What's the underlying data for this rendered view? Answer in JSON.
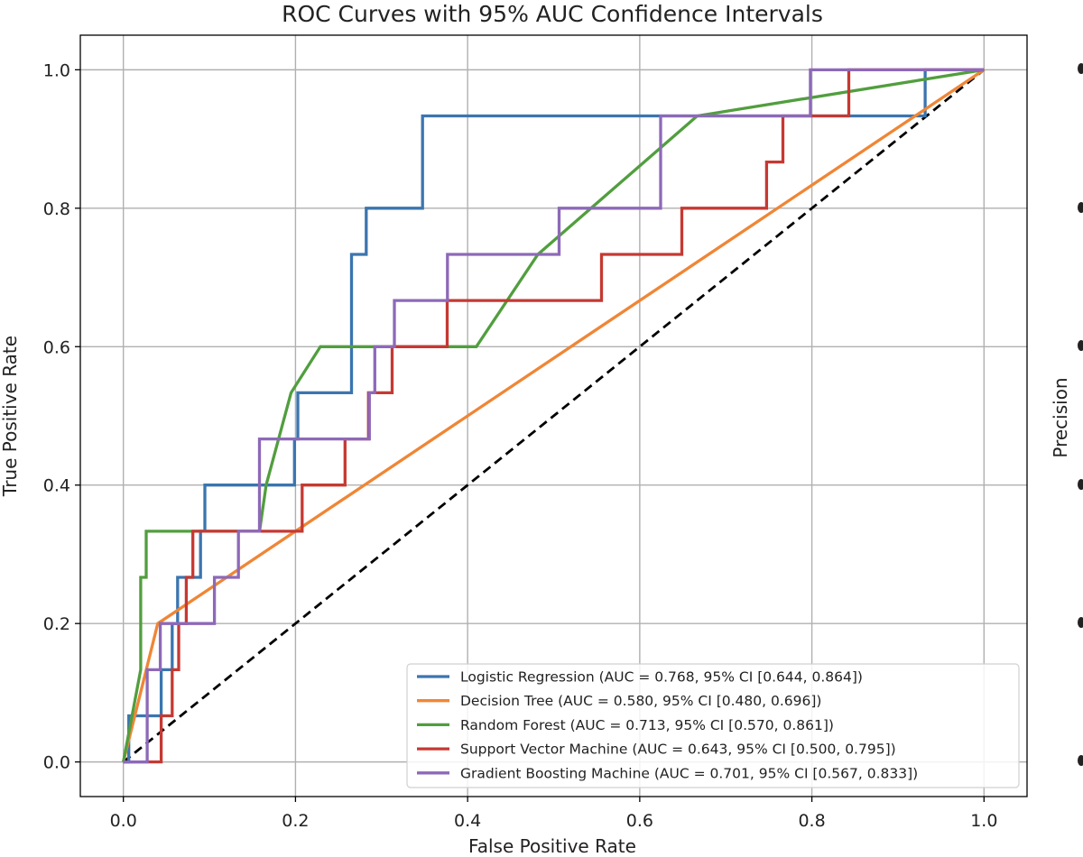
{
  "chart_data": {
    "type": "line",
    "title": "ROC Curves with 95% AUC Confidence Intervals",
    "xlabel": "False Positive Rate",
    "ylabel": "True Positive Rate",
    "xlim": [
      -0.05,
      1.05
    ],
    "ylim": [
      -0.05,
      1.05
    ],
    "xticks": [
      "0.0",
      "0.2",
      "0.4",
      "0.6",
      "0.8",
      "1.0"
    ],
    "yticks": [
      "0.0",
      "0.2",
      "0.4",
      "0.6",
      "0.8",
      "1.0"
    ],
    "grid": true,
    "legend_position": "lower-right",
    "reference_line": {
      "name": "chance",
      "color": "#000000",
      "style": "dashed",
      "x": [
        0,
        1
      ],
      "y": [
        0,
        1
      ]
    },
    "series": [
      {
        "name": "Logistic Regression (AUC = 0.768, 95% CI [0.644, 0.864])",
        "color": "#3b75af",
        "x": [
          0,
          0.0063,
          0.0063,
          0.0063,
          0.044,
          0.044,
          0.0567,
          0.0567,
          0.063,
          0.063,
          0.0897,
          0.0897,
          0.0947,
          0.0947,
          0.1988,
          0.1988,
          0.2027,
          0.2027,
          0.2651,
          0.2651,
          0.2795,
          0.2795,
          0.2822,
          0.2822,
          0.3476,
          0.3476,
          0.9316,
          0.9316,
          0.9316,
          1.0
        ],
        "y": [
          0,
          0,
          0.0667,
          0.0667,
          0.0667,
          0.1333,
          0.1333,
          0.2,
          0.2,
          0.2667,
          0.2667,
          0.3333,
          0.3333,
          0.4,
          0.4,
          0.4667,
          0.4667,
          0.5333,
          0.5333,
          0.7333,
          0.7333,
          0.7333,
          0.7333,
          0.8,
          0.8,
          0.9333,
          0.9333,
          1.0,
          1.0,
          1.0
        ]
      },
      {
        "name": "Decision Tree (AUC = 0.580, 95% CI [0.480, 0.696])",
        "color": "#ef8636",
        "x": [
          0,
          0.04,
          1.0
        ],
        "y": [
          0,
          0.2,
          1.0
        ]
      },
      {
        "name": "Random Forest (AUC = 0.713, 95% CI [0.570, 0.861])",
        "color": "#519e3e",
        "x": [
          0,
          0.0202,
          0.0202,
          0.0265,
          0.0265,
          0.1583,
          0.1583,
          0.1659,
          0.1659,
          0.1949,
          0.1949,
          0.2289,
          0.2289,
          0.4101,
          0.4101,
          0.4816,
          0.4816,
          0.6667,
          0.6667,
          1.0
        ],
        "y": [
          0,
          0.1333,
          0.2667,
          0.2667,
          0.3333,
          0.3333,
          0.3333,
          0.4,
          0.4,
          0.5333,
          0.5333,
          0.6,
          0.6,
          0.6,
          0.6,
          0.7333,
          0.7333,
          0.9333,
          0.9333,
          1.0
        ]
      },
      {
        "name": "Support Vector Machine (AUC = 0.643, 95% CI [0.500, 0.795])",
        "color": "#c53932",
        "x": [
          0,
          0.044,
          0.044,
          0.0567,
          0.0567,
          0.0643,
          0.0643,
          0.0731,
          0.0731,
          0.0808,
          0.0808,
          0.0997,
          0.0997,
          0.2077,
          0.2077,
          0.2576,
          0.2576,
          0.2848,
          0.2848,
          0.3123,
          0.3123,
          0.3763,
          0.3763,
          0.5556,
          0.5556,
          0.6489,
          0.6489,
          0.7474,
          0.7474,
          0.7664,
          0.7664,
          0.8429,
          0.8429,
          1.0
        ],
        "y": [
          0,
          0,
          0.0667,
          0.0667,
          0.1333,
          0.1333,
          0.2,
          0.2,
          0.2667,
          0.2667,
          0.3333,
          0.3333,
          0.3333,
          0.3333,
          0.4,
          0.4,
          0.4667,
          0.4667,
          0.5333,
          0.5333,
          0.6,
          0.6,
          0.6667,
          0.6667,
          0.7333,
          0.7333,
          0.8,
          0.8,
          0.8667,
          0.8667,
          0.9333,
          0.9333,
          1.0,
          1.0
        ]
      },
      {
        "name": "Gradient Boosting Machine (AUC = 0.701, 95% CI [0.567, 0.833])",
        "color": "#8d69b8",
        "x": [
          0,
          0.0277,
          0.0277,
          0.0429,
          0.0429,
          0.1058,
          0.1058,
          0.1337,
          0.1337,
          0.1582,
          0.1582,
          0.2859,
          0.2859,
          0.2922,
          0.2922,
          0.3149,
          0.3149,
          0.3766,
          0.3766,
          0.5063,
          0.5063,
          0.6243,
          0.6243,
          0.7982,
          0.7982,
          1.0
        ],
        "y": [
          0,
          0,
          0.1333,
          0.1333,
          0.2,
          0.2,
          0.2667,
          0.2667,
          0.3333,
          0.3333,
          0.4667,
          0.4667,
          0.5333,
          0.5333,
          0.6,
          0.6,
          0.6667,
          0.6667,
          0.7333,
          0.7333,
          0.8,
          0.8,
          0.9333,
          0.9333,
          1.0,
          1.0
        ]
      }
    ]
  },
  "side_panel": {
    "ylabel": "Precision"
  }
}
